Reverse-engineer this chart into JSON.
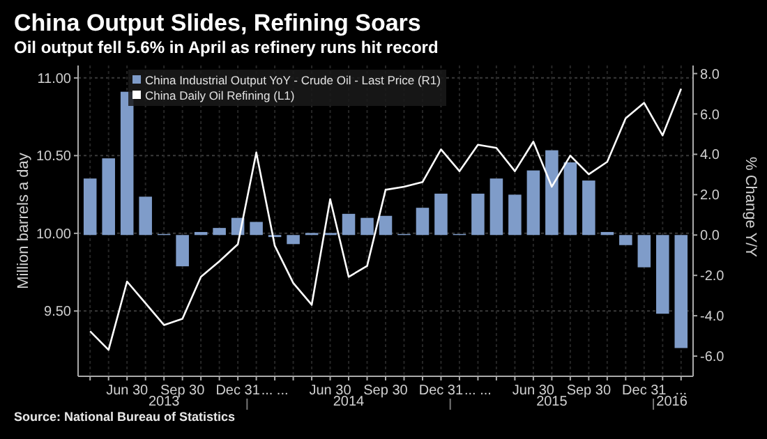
{
  "chart_data": {
    "type": "bar",
    "title": "China Output Slides, Refining Soars",
    "subtitle": "Oil output fell 5.6% in April as refinery runs hit record",
    "ylabel": "Million barrels a day",
    "y2label": "% Change Y/Y",
    "categories": [
      null,
      null,
      "Jun 30",
      null,
      null,
      "Sep 30",
      null,
      null,
      "Dec 31",
      null,
      "... ...",
      null,
      null,
      "Jun 30",
      null,
      null,
      "Sep 30",
      null,
      null,
      "Dec 31",
      null,
      "... ...",
      null,
      null,
      "Jun 30",
      null,
      null,
      "Sep 30",
      null,
      null,
      "Dec 31",
      null,
      "..."
    ],
    "series": [
      {
        "name": "China Industrial Output YoY - Crude Oil - Last Price (R1)",
        "axis": "y2",
        "color": "#7f9cc9",
        "values": [
          2.8,
          3.8,
          7.1,
          1.9,
          0.05,
          -1.55,
          0.15,
          0.35,
          0.85,
          0.65,
          -0.1,
          -0.45,
          0.1,
          0.1,
          1.05,
          0.85,
          0.95,
          0.05,
          1.35,
          2.05,
          0.05,
          2.05,
          2.8,
          2.0,
          3.2,
          4.2,
          3.6,
          2.7,
          0.15,
          -0.5,
          -1.6,
          -3.9,
          -5.6
        ]
      },
      {
        "name": "China Daily Oil Refining  (L1)",
        "type": "line",
        "color": "#ffffff",
        "values": [
          9.37,
          9.25,
          9.69,
          9.55,
          9.41,
          9.45,
          9.72,
          9.82,
          9.93,
          10.52,
          9.92,
          9.68,
          9.54,
          10.22,
          9.72,
          9.79,
          10.28,
          10.3,
          10.33,
          10.54,
          10.4,
          10.57,
          10.55,
          10.4,
          10.59,
          10.3,
          10.5,
          10.38,
          10.46,
          10.74,
          10.84,
          10.63,
          10.93
        ]
      }
    ],
    "ylim": [
      9.08,
      11.08
    ],
    "yticks": [
      {
        "value": 9.5,
        "label": "9.50"
      },
      {
        "value": 10,
        "label": "10.00"
      },
      {
        "value": 10.5,
        "label": "10.50"
      },
      {
        "value": 11,
        "label": "11.00"
      }
    ],
    "y2lim": [
      -7,
      8.4
    ],
    "y2ticks": [
      {
        "value": -6,
        "label": "-6.0"
      },
      {
        "value": -4,
        "label": "-4.0"
      },
      {
        "value": -2,
        "label": "-2.0"
      },
      {
        "value": 0,
        "label": "0.0"
      },
      {
        "value": 2,
        "label": "2.0"
      },
      {
        "value": 4,
        "label": "4.0"
      },
      {
        "value": 6,
        "label": "6.0"
      },
      {
        "value": 8,
        "label": "8.0"
      }
    ],
    "grid": true,
    "legend": "top left",
    "annotations": [
      "2013",
      "2014",
      "2015",
      "2016",
      "Source: National Bureau of Statistics"
    ]
  }
}
